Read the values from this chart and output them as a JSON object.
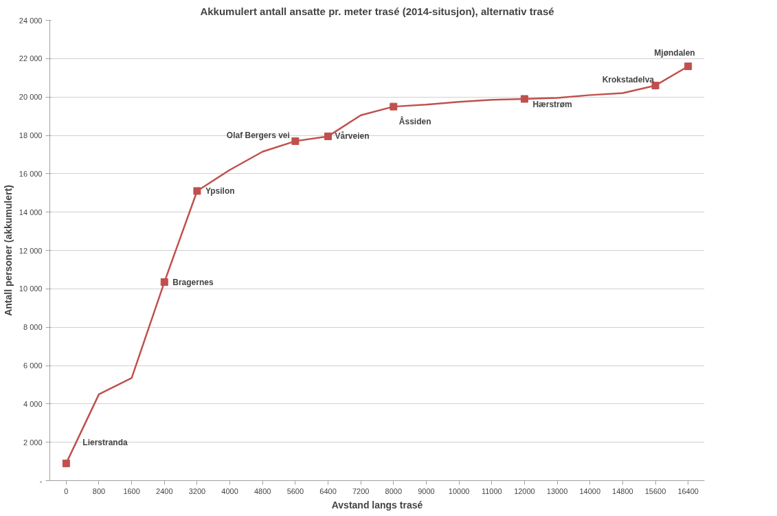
{
  "chart_data": {
    "type": "line",
    "title": "Akkumulert antall ansatte pr. meter trasé (2014-situsjon), alternativ trasé",
    "xlabel": "Avstand langs trasé",
    "ylabel": "Antall personer (akkumulert)",
    "categories": [
      "0",
      "800",
      "1600",
      "2400",
      "3200",
      "4000",
      "4800",
      "5600",
      "6400",
      "7200",
      "8000",
      "9000",
      "10000",
      "11000",
      "12000",
      "13000",
      "14000",
      "14800",
      "15600",
      "16400"
    ],
    "series": [
      {
        "color": "#c0504d",
        "marker": "none",
        "values": [
          900,
          4500,
          5350,
          10350,
          15100,
          16200,
          17150,
          17700,
          17950,
          19050,
          19500,
          19600,
          19750,
          19850,
          19900,
          19950,
          20100,
          20200,
          20600,
          21600
        ]
      },
      {
        "type": "scatter",
        "color": "#c0504d",
        "marker": "square",
        "values": [
          900,
          null,
          null,
          10350,
          15100,
          null,
          null,
          17700,
          17950,
          null,
          19500,
          null,
          null,
          null,
          19900,
          null,
          null,
          null,
          20600,
          21600
        ]
      }
    ],
    "annotations": [
      {
        "text": "Lierstranda",
        "x": "0",
        "y": 900
      },
      {
        "text": "Bragernes",
        "x": "2400",
        "y": 10350
      },
      {
        "text": "Ypsilon",
        "x": "3200",
        "y": 15100
      },
      {
        "text": "Olaf Bergers vei",
        "x": "5600",
        "y": 17700
      },
      {
        "text": "Vårveien",
        "x": "6400",
        "y": 17950
      },
      {
        "text": "Åssiden",
        "x": "8000",
        "y": 19500
      },
      {
        "text": "Hærstrøm",
        "x": "12000",
        "y": 19900
      },
      {
        "text": "Krokstadelva",
        "x": "15600",
        "y": 20600
      },
      {
        "text": "Mjøndalen",
        "x": "16400",
        "y": 21600
      }
    ],
    "ylim": [
      0,
      24000
    ],
    "yticks": [
      {
        "value": 0,
        "label": "-"
      },
      {
        "value": 2000,
        "label": "2 000"
      },
      {
        "value": 4000,
        "label": "4 000"
      },
      {
        "value": 6000,
        "label": "6 000"
      },
      {
        "value": 8000,
        "label": "8 000"
      },
      {
        "value": 10000,
        "label": "10 000"
      },
      {
        "value": 12000,
        "label": "12 000"
      },
      {
        "value": 14000,
        "label": "14 000"
      },
      {
        "value": 16000,
        "label": "16 000"
      },
      {
        "value": 18000,
        "label": "18 000"
      },
      {
        "value": 20000,
        "label": "20 000"
      },
      {
        "value": 22000,
        "label": "22 000"
      },
      {
        "value": 24000,
        "label": "24 000"
      }
    ],
    "grid": "y"
  }
}
